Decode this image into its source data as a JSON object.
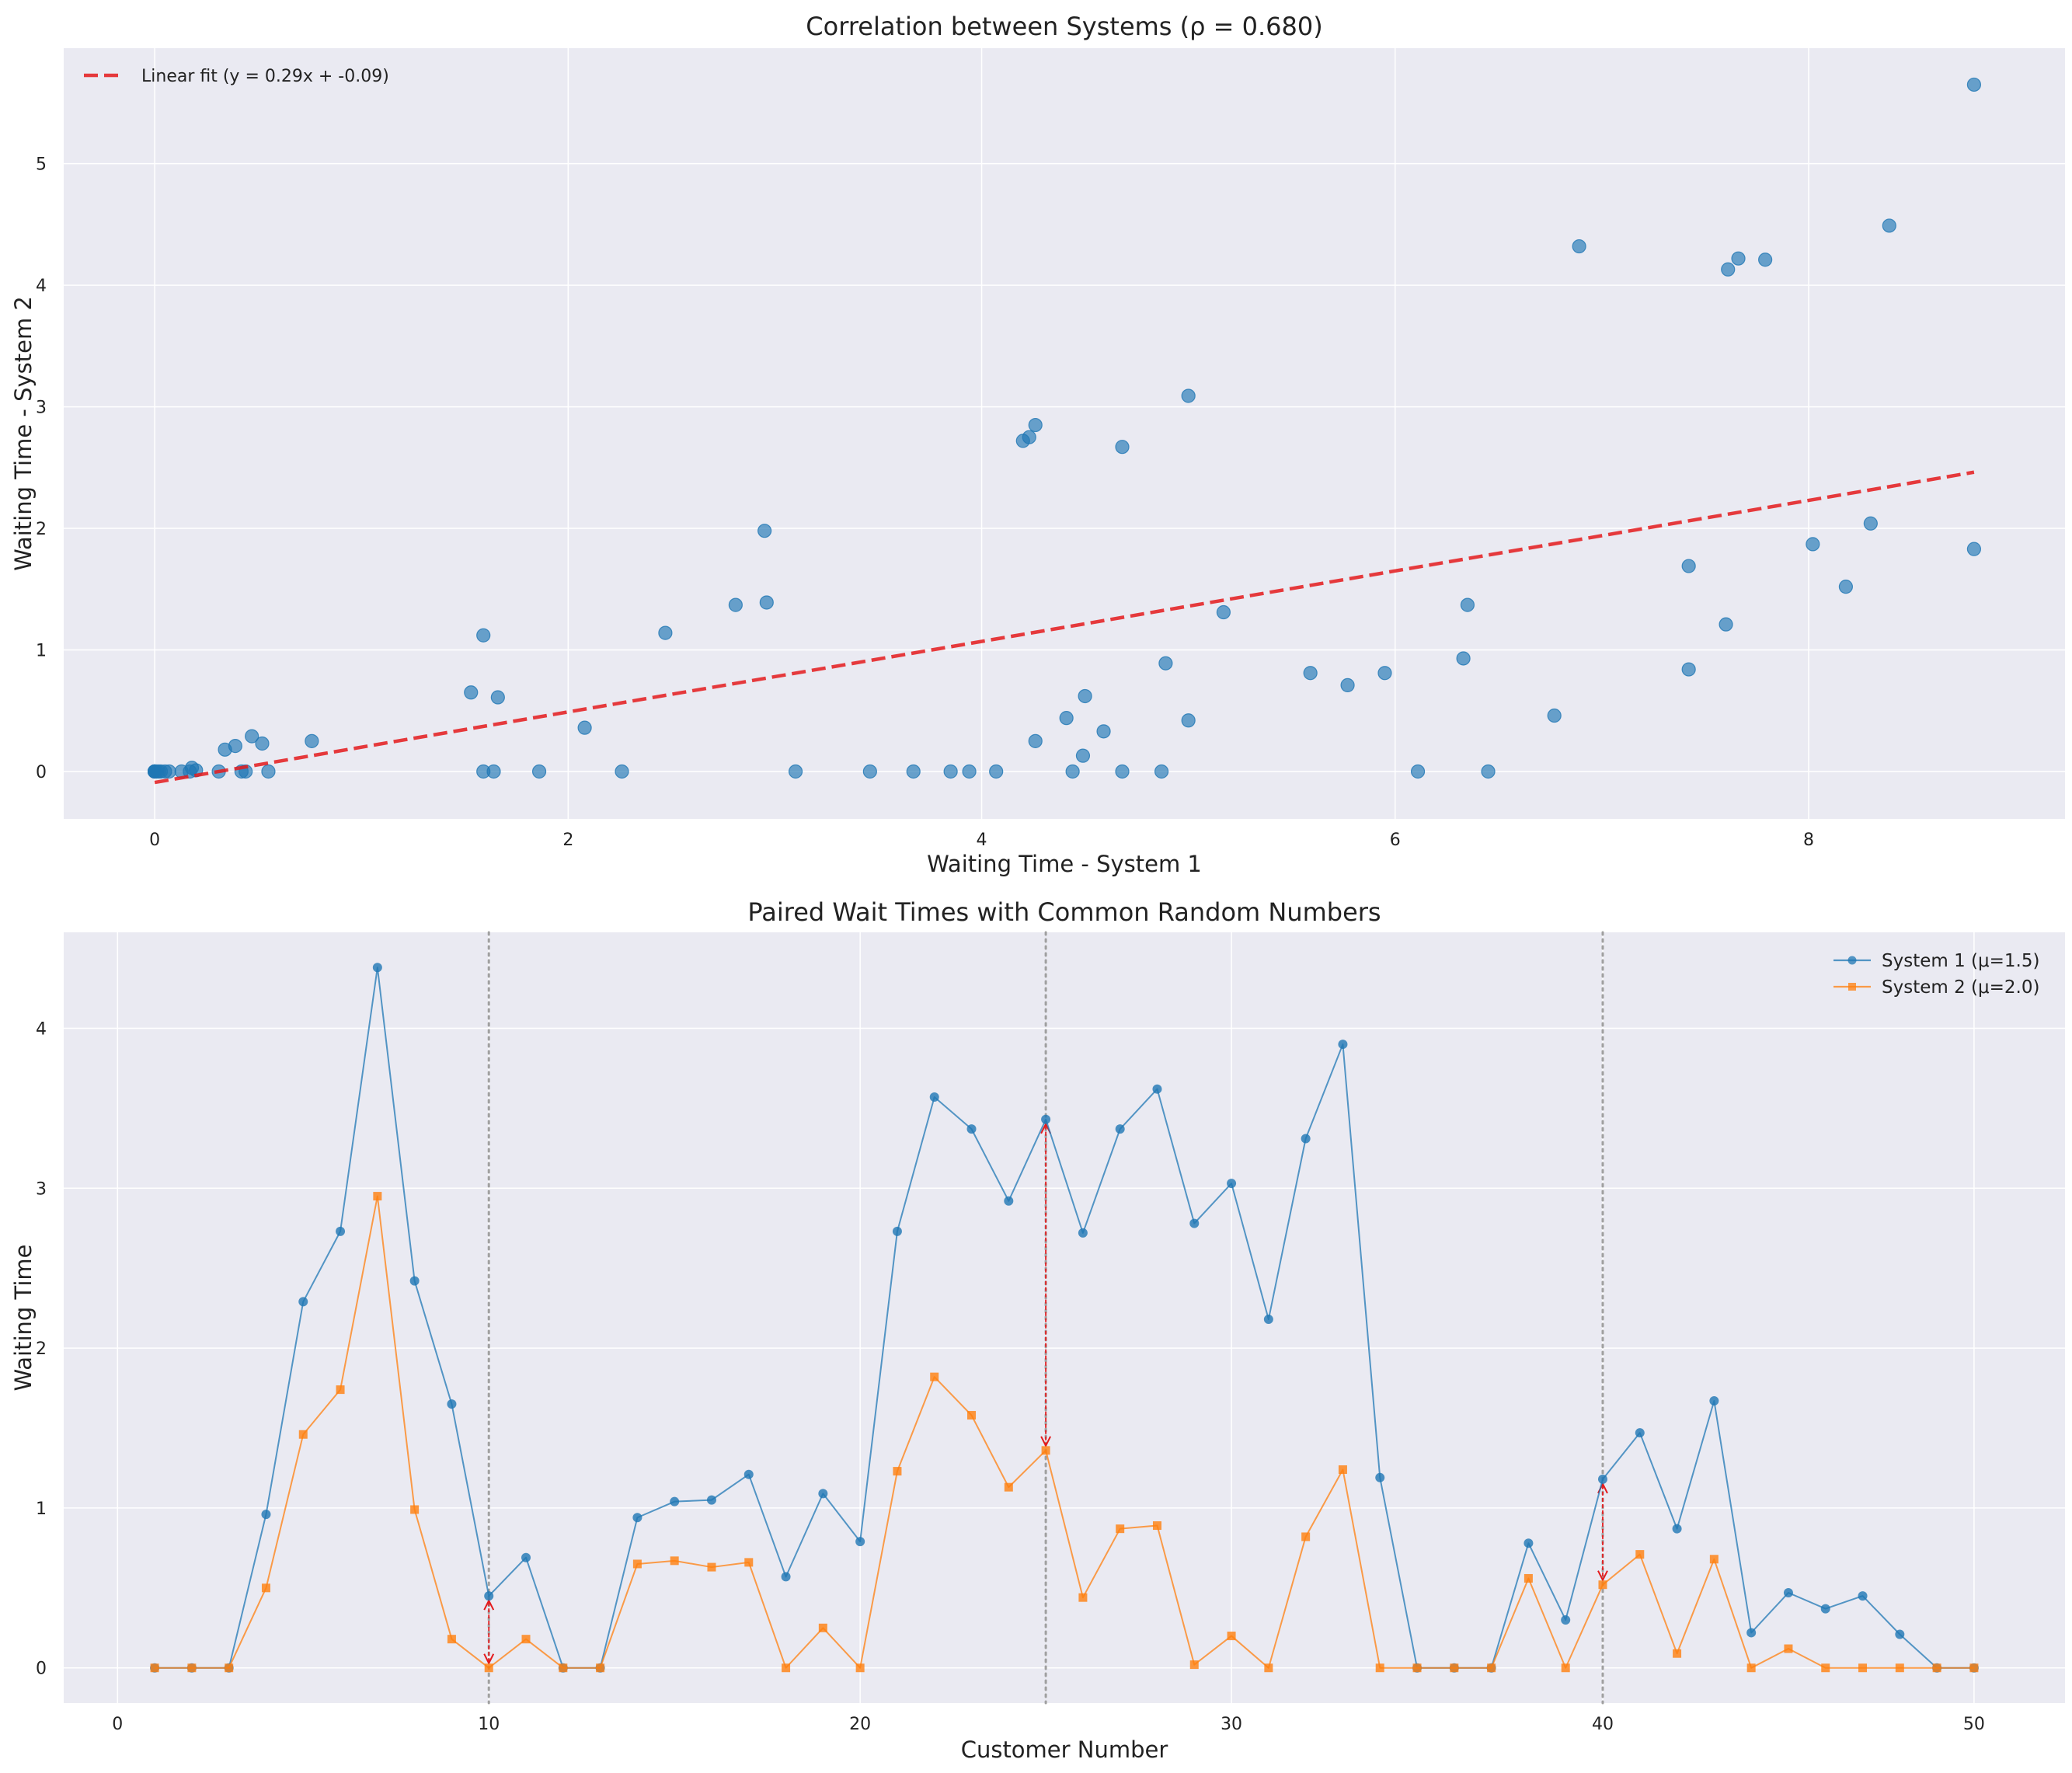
{
  "colors": {
    "background": "#eaeaf2",
    "grid": "#ffffff",
    "system1": "#1f77b4",
    "system2": "#ff7f0e",
    "fit": "#e41a1c",
    "diff_arrow": "#e41a1c",
    "reference_line": "#a0a0a0"
  },
  "chart_data": [
    {
      "type": "scatter",
      "title": "Correlation between Systems (ρ = 0.680)",
      "xlabel": "Waiting Time - System 1",
      "ylabel": "Waiting Time - System 2",
      "xlim": [
        -0.44,
        9.24
      ],
      "ylim": [
        -0.39,
        5.95
      ],
      "xticks": [
        0,
        2,
        4,
        6,
        8
      ],
      "yticks": [
        0,
        1,
        2,
        3,
        4,
        5
      ],
      "grid": true,
      "legend_position": "top-left",
      "fit_line": {
        "label": "Linear fit (y = 0.29x + -0.09)",
        "slope": 0.29,
        "intercept": -0.09,
        "x_range": [
          0,
          8.8
        ]
      },
      "points": [
        [
          0,
          0
        ],
        [
          0,
          0
        ],
        [
          0,
          0
        ],
        [
          0,
          0
        ],
        [
          0,
          0
        ],
        [
          0.01,
          0
        ],
        [
          0.02,
          0
        ],
        [
          0.03,
          0
        ],
        [
          0.05,
          0
        ],
        [
          0.07,
          0
        ],
        [
          0.13,
          0
        ],
        [
          0.17,
          0
        ],
        [
          0.2,
          0.01
        ],
        [
          0.18,
          0.03
        ],
        [
          0.31,
          0
        ],
        [
          0.34,
          0.18
        ],
        [
          0.39,
          0.21
        ],
        [
          0.42,
          0
        ],
        [
          0.44,
          0
        ],
        [
          0.47,
          0.29
        ],
        [
          0.52,
          0.23
        ],
        [
          0.55,
          0
        ],
        [
          0.76,
          0.25
        ],
        [
          1.53,
          0.65
        ],
        [
          1.59,
          1.12
        ],
        [
          1.59,
          0
        ],
        [
          1.64,
          0
        ],
        [
          1.66,
          0.61
        ],
        [
          1.86,
          0
        ],
        [
          2.08,
          0.36
        ],
        [
          2.26,
          0
        ],
        [
          2.47,
          1.14
        ],
        [
          2.81,
          1.37
        ],
        [
          2.95,
          1.98
        ],
        [
          2.96,
          1.39
        ],
        [
          3.1,
          0
        ],
        [
          3.46,
          0
        ],
        [
          3.67,
          0
        ],
        [
          3.85,
          0
        ],
        [
          3.94,
          0
        ],
        [
          4.07,
          0
        ],
        [
          4.2,
          2.72
        ],
        [
          4.23,
          2.75
        ],
        [
          4.26,
          2.85
        ],
        [
          4.26,
          0.25
        ],
        [
          4.41,
          0.44
        ],
        [
          4.44,
          0
        ],
        [
          4.49,
          0.13
        ],
        [
          4.5,
          0.62
        ],
        [
          4.59,
          0.33
        ],
        [
          4.68,
          2.67
        ],
        [
          4.68,
          0
        ],
        [
          4.87,
          0
        ],
        [
          4.89,
          0.89
        ],
        [
          5.0,
          3.09
        ],
        [
          5.0,
          0.42
        ],
        [
          5.17,
          1.31
        ],
        [
          5.59,
          0.81
        ],
        [
          5.77,
          0.71
        ],
        [
          5.95,
          0.81
        ],
        [
          6.11,
          0
        ],
        [
          6.33,
          0.93
        ],
        [
          6.35,
          1.37
        ],
        [
          6.45,
          0
        ],
        [
          6.77,
          0.46
        ],
        [
          6.89,
          4.32
        ],
        [
          7.42,
          1.69
        ],
        [
          7.42,
          0.84
        ],
        [
          7.6,
          1.21
        ],
        [
          7.61,
          4.13
        ],
        [
          7.66,
          4.22
        ],
        [
          7.79,
          4.21
        ],
        [
          8.02,
          1.87
        ],
        [
          8.18,
          1.52
        ],
        [
          8.3,
          2.04
        ],
        [
          8.39,
          4.49
        ],
        [
          8.8,
          5.65
        ],
        [
          8.8,
          1.83
        ]
      ]
    },
    {
      "type": "line",
      "title": "Paired Wait Times with Common Random Numbers",
      "xlabel": "Customer Number",
      "ylabel": "Waiting Time",
      "xlim": [
        -1.45,
        52.45
      ],
      "ylim": [
        -0.22,
        4.6
      ],
      "xticks": [
        0,
        10,
        20,
        30,
        40,
        50
      ],
      "yticks": [
        0,
        1,
        2,
        3,
        4
      ],
      "grid": true,
      "legend_position": "top-right",
      "reference_lines_x": [
        10,
        25,
        40
      ],
      "difference_arrows_at": [
        10,
        25,
        40
      ],
      "x": [
        1,
        2,
        3,
        4,
        5,
        6,
        7,
        8,
        9,
        10,
        11,
        12,
        13,
        14,
        15,
        16,
        17,
        18,
        19,
        20,
        21,
        22,
        23,
        24,
        25,
        26,
        27,
        28,
        29,
        30,
        31,
        32,
        33,
        34,
        35,
        36,
        37,
        38,
        39,
        40,
        41,
        42,
        43,
        44,
        45,
        46,
        47,
        48,
        49,
        50
      ],
      "series": [
        {
          "name": "System 1 (μ=1.5)",
          "marker": "circle",
          "values": [
            0,
            0,
            0,
            0.96,
            2.29,
            2.73,
            4.38,
            2.42,
            1.65,
            0.45,
            0.69,
            0,
            0,
            0.94,
            1.04,
            1.05,
            1.21,
            0.57,
            1.09,
            0.79,
            2.73,
            3.57,
            3.37,
            2.92,
            3.43,
            2.72,
            3.37,
            3.62,
            2.78,
            3.03,
            2.18,
            3.31,
            3.9,
            1.19,
            0,
            0,
            0,
            0.78,
            0.3,
            1.18,
            1.47,
            0.87,
            1.67,
            0.22,
            0.47,
            0.37,
            0.45,
            0.21,
            0,
            0
          ]
        },
        {
          "name": "System 2 (μ=2.0)",
          "marker": "square",
          "values": [
            0,
            0,
            0,
            0.5,
            1.46,
            1.74,
            2.95,
            0.99,
            0.18,
            0,
            0.18,
            0,
            0,
            0.65,
            0.67,
            0.63,
            0.66,
            0,
            0.25,
            0,
            1.23,
            1.82,
            1.58,
            1.13,
            1.36,
            0.44,
            0.87,
            0.89,
            0.02,
            0.2,
            0,
            0.82,
            1.24,
            0,
            0,
            0,
            0,
            0.56,
            0,
            0.52,
            0.71,
            0.09,
            0.68,
            0,
            0.12,
            0,
            0,
            0,
            0,
            0
          ]
        }
      ]
    }
  ]
}
